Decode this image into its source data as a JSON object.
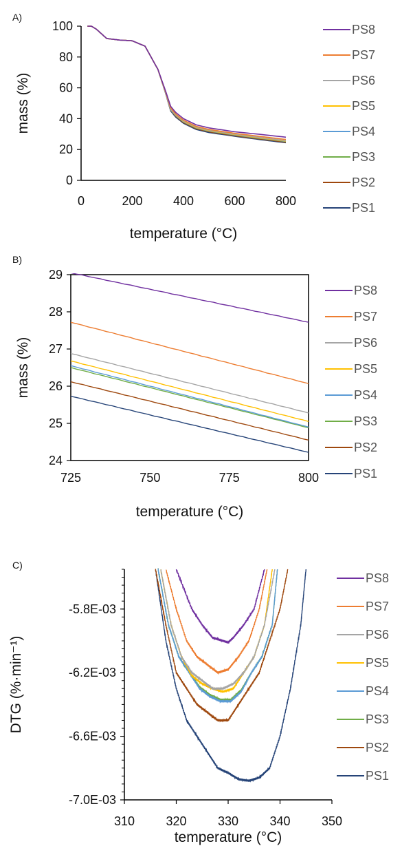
{
  "colors": {
    "PS8": "#7030a0",
    "PS7": "#ed7d31",
    "PS6": "#a5a5a5",
    "PS5": "#ffc000",
    "PS4": "#5b9bd5",
    "PS3": "#70ad47",
    "PS2": "#9e480e",
    "PS1": "#264478"
  },
  "chart_data": [
    {
      "panel_label": "A)",
      "type": "line",
      "xlabel": "temperature (°C)",
      "ylabel": "mass (%)",
      "xlim": [
        0,
        800
      ],
      "ylim": [
        0,
        100
      ],
      "xticks": [
        0,
        200,
        400,
        600,
        800
      ],
      "yticks": [
        0,
        20,
        40,
        60,
        80,
        100
      ],
      "ytick_labels": [
        "0",
        "20",
        "40",
        "60",
        "80",
        "100"
      ],
      "legend": [
        "PS8",
        "PS7",
        "PS6",
        "PS5",
        "PS4",
        "PS3",
        "PS2",
        "PS1"
      ],
      "legend_placement": "right",
      "series": [
        {
          "name": "PS8",
          "x": [
            25,
            40,
            60,
            80,
            100,
            150,
            200,
            250,
            300,
            330,
            350,
            370,
            400,
            450,
            500,
            600,
            700,
            800
          ],
          "y": [
            100,
            100,
            98,
            95,
            92,
            91,
            90.5,
            87,
            72,
            58,
            48,
            44,
            40,
            36,
            34,
            31.5,
            29.8,
            28
          ]
        },
        {
          "name": "PS7",
          "x": [
            25,
            40,
            60,
            80,
            100,
            150,
            200,
            250,
            300,
            330,
            350,
            370,
            400,
            450,
            500,
            600,
            700,
            800
          ],
          "y": [
            100,
            100,
            98,
            95,
            92,
            91,
            90.5,
            87,
            72,
            57.5,
            47,
            43,
            39,
            35,
            33,
            30.5,
            28.5,
            26.5
          ]
        },
        {
          "name": "PS6",
          "x": [
            25,
            40,
            60,
            80,
            100,
            150,
            200,
            250,
            300,
            330,
            350,
            370,
            400,
            450,
            500,
            600,
            700,
            800
          ],
          "y": [
            100,
            100,
            98,
            95,
            92,
            91,
            90.5,
            87,
            72,
            57,
            46,
            42.5,
            38.5,
            34.5,
            32.5,
            30,
            27.8,
            25.8
          ]
        },
        {
          "name": "PS5",
          "x": [
            25,
            40,
            60,
            80,
            100,
            150,
            200,
            250,
            300,
            330,
            350,
            370,
            400,
            450,
            500,
            600,
            700,
            800
          ],
          "y": [
            100,
            100,
            98,
            95,
            92,
            91,
            90.5,
            87,
            72,
            57,
            46,
            42.3,
            38.2,
            34.2,
            32.2,
            29.7,
            27.5,
            25.5
          ]
        },
        {
          "name": "PS4",
          "x": [
            25,
            40,
            60,
            80,
            100,
            150,
            200,
            250,
            300,
            330,
            350,
            370,
            400,
            450,
            500,
            600,
            700,
            800
          ],
          "y": [
            100,
            100,
            98,
            95,
            92,
            91,
            90.5,
            87,
            72,
            57,
            45.8,
            42,
            38,
            34,
            32,
            29.5,
            27.3,
            25.3
          ]
        },
        {
          "name": "PS3",
          "x": [
            25,
            40,
            60,
            80,
            100,
            150,
            200,
            250,
            300,
            330,
            350,
            370,
            400,
            450,
            500,
            600,
            700,
            800
          ],
          "y": [
            100,
            100,
            98,
            95,
            92,
            91,
            90.5,
            87,
            72,
            57,
            45.7,
            41.9,
            37.9,
            33.9,
            31.9,
            29.4,
            27.2,
            25.2
          ]
        },
        {
          "name": "PS2",
          "x": [
            25,
            40,
            60,
            80,
            100,
            150,
            200,
            250,
            300,
            330,
            350,
            370,
            400,
            450,
            500,
            600,
            700,
            800
          ],
          "y": [
            100,
            100,
            98,
            95,
            92,
            91,
            90.5,
            87,
            72,
            57,
            45.5,
            41.5,
            37.5,
            33.5,
            31.5,
            29,
            26.8,
            24.8
          ]
        },
        {
          "name": "PS1",
          "x": [
            25,
            40,
            60,
            80,
            100,
            150,
            200,
            250,
            300,
            330,
            350,
            370,
            400,
            450,
            500,
            600,
            700,
            800
          ],
          "y": [
            100,
            100,
            98,
            95,
            92,
            91,
            90.5,
            87,
            72,
            56.5,
            45,
            41,
            37,
            33,
            31,
            28.6,
            26.4,
            24.4
          ]
        }
      ]
    },
    {
      "panel_label": "B)",
      "type": "line",
      "xlabel": "temperature (°C)",
      "ylabel": "mass (%)",
      "xlim": [
        725,
        800
      ],
      "ylim": [
        24,
        29
      ],
      "xticks": [
        725,
        750,
        775,
        800
      ],
      "yticks": [
        24,
        25,
        26,
        27,
        28,
        29
      ],
      "ytick_labels": [
        "24",
        "25",
        "26",
        "27",
        "28",
        "29"
      ],
      "legend": [
        "PS8",
        "PS7",
        "PS6",
        "PS5",
        "PS4",
        "PS3",
        "PS2",
        "PS1"
      ],
      "legend_placement": "right",
      "series": [
        {
          "name": "PS8",
          "x": [
            725,
            800
          ],
          "y": [
            29.05,
            27.72
          ]
        },
        {
          "name": "PS7",
          "x": [
            725,
            800
          ],
          "y": [
            27.72,
            26.07
          ]
        },
        {
          "name": "PS6",
          "x": [
            725,
            800
          ],
          "y": [
            26.88,
            25.28
          ]
        },
        {
          "name": "PS5",
          "x": [
            725,
            800
          ],
          "y": [
            26.68,
            25.05
          ]
        },
        {
          "name": "PS4",
          "x": [
            725,
            800
          ],
          "y": [
            26.55,
            24.9
          ]
        },
        {
          "name": "PS3",
          "x": [
            725,
            800
          ],
          "y": [
            26.5,
            24.88
          ]
        },
        {
          "name": "PS2",
          "x": [
            725,
            800
          ],
          "y": [
            26.12,
            24.55
          ]
        },
        {
          "name": "PS1",
          "x": [
            725,
            800
          ],
          "y": [
            25.73,
            24.22
          ]
        }
      ]
    },
    {
      "panel_label": "C)",
      "type": "line",
      "xlabel": "temperature (°C)",
      "ylabel": "DTG (%·min⁻¹)",
      "xlim": [
        310,
        350
      ],
      "ylim": [
        -0.007,
        -0.00555
      ],
      "xticks": [
        310,
        320,
        330,
        340,
        350
      ],
      "yticks": [
        -0.0058,
        -0.0062,
        -0.0066,
        -0.007
      ],
      "ytick_labels": [
        "-5.8E-03",
        "-6.2E-03",
        "-6.6E-03",
        "-7.0E-03"
      ],
      "legend": [
        "PS8",
        "PS7",
        "PS6",
        "PS5",
        "PS4",
        "PS3",
        "PS2",
        "PS1"
      ],
      "legend_placement": "right",
      "series": [
        {
          "name": "PS8",
          "x": [
            320,
            323,
            325,
            327,
            329,
            330,
            331,
            333,
            335,
            337
          ],
          "y": [
            -0.00555,
            -0.0058,
            -0.0059,
            -0.00598,
            -0.006,
            -0.00601,
            -0.00598,
            -0.0059,
            -0.0058,
            -0.00555
          ]
        },
        {
          "name": "PS7",
          "x": [
            318,
            320,
            322,
            324,
            326,
            328,
            330,
            332,
            334,
            336,
            337.5
          ],
          "y": [
            -0.00555,
            -0.0058,
            -0.006,
            -0.0061,
            -0.00615,
            -0.0062,
            -0.00618,
            -0.0061,
            -0.006,
            -0.0058,
            -0.00555
          ]
        },
        {
          "name": "PS6",
          "x": [
            317,
            319,
            321,
            323,
            325,
            327,
            329,
            331,
            333,
            335,
            337,
            339
          ],
          "y": [
            -0.00555,
            -0.0059,
            -0.0061,
            -0.0062,
            -0.00625,
            -0.0063,
            -0.0063,
            -0.00627,
            -0.0062,
            -0.0061,
            -0.0059,
            -0.00555
          ]
        },
        {
          "name": "PS5",
          "x": [
            317,
            319,
            321,
            323,
            325,
            327,
            329,
            331,
            333,
            335,
            337,
            338.5
          ],
          "y": [
            -0.00555,
            -0.0059,
            -0.0061,
            -0.00622,
            -0.00627,
            -0.0063,
            -0.00632,
            -0.0063,
            -0.0062,
            -0.0061,
            -0.0059,
            -0.00555
          ]
        },
        {
          "name": "PS4",
          "x": [
            316.5,
            318.5,
            320.5,
            322.5,
            324.5,
            326.5,
            328.5,
            330.5,
            332.5,
            334.5,
            336.5,
            338.5,
            339.5
          ],
          "y": [
            -0.00555,
            -0.0059,
            -0.0061,
            -0.0062,
            -0.0063,
            -0.00635,
            -0.00638,
            -0.00638,
            -0.00632,
            -0.0062,
            -0.0061,
            -0.0059,
            -0.00555
          ]
        },
        {
          "name": "PS3",
          "x": [
            316.5,
            318.5,
            320.5,
            322.5,
            324.5,
            326.5,
            328.5,
            330.5,
            332.5,
            334.5,
            336.5,
            338.5,
            339.5
          ],
          "y": [
            -0.00555,
            -0.0059,
            -0.0061,
            -0.0062,
            -0.00629,
            -0.00634,
            -0.00637,
            -0.00637,
            -0.00631,
            -0.0062,
            -0.0061,
            -0.0059,
            -0.00555
          ]
        },
        {
          "name": "PS2",
          "x": [
            316,
            318,
            320,
            322,
            324,
            326,
            328,
            330,
            332,
            334,
            336,
            338,
            340,
            341.5
          ],
          "y": [
            -0.00555,
            -0.0059,
            -0.0062,
            -0.0063,
            -0.0064,
            -0.00645,
            -0.0065,
            -0.0065,
            -0.0064,
            -0.0063,
            -0.0062,
            -0.006,
            -0.0058,
            -0.00555
          ]
        },
        {
          "name": "PS1",
          "x": [
            316,
            318,
            320,
            322,
            324,
            326,
            328,
            330,
            332,
            334,
            336,
            338,
            340,
            342,
            344,
            345
          ],
          "y": [
            -0.00555,
            -0.006,
            -0.0063,
            -0.0065,
            -0.0066,
            -0.0067,
            -0.0068,
            -0.00683,
            -0.00687,
            -0.00688,
            -0.00686,
            -0.0068,
            -0.0066,
            -0.0063,
            -0.0059,
            -0.00555
          ]
        }
      ]
    }
  ]
}
